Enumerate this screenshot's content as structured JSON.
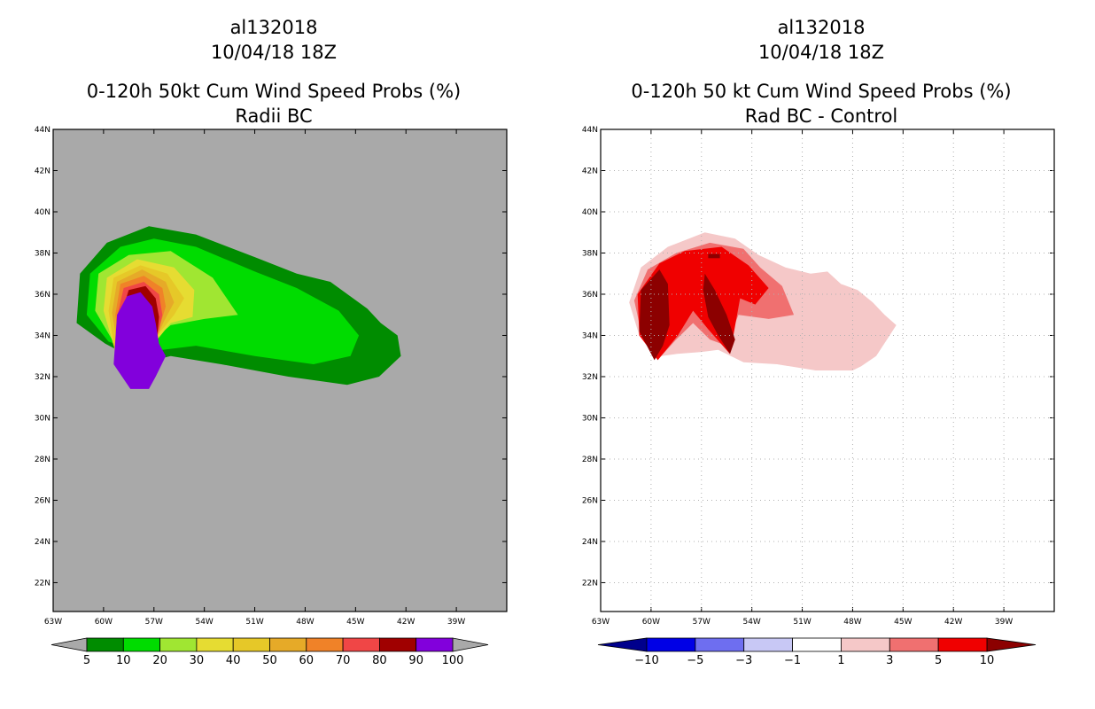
{
  "chart_data": [
    {
      "type": "contour-map",
      "case_id": "al132018",
      "datetime": "10/04/18 18Z",
      "title": "0-120h 50kt Cum Wind Speed Probs (%)",
      "subtitle": "Radii BC",
      "background_color": "#a9a9a9",
      "grid": false,
      "lon_range": [
        -63,
        -36
      ],
      "lat_range": [
        20.6,
        44
      ],
      "x_ticks": [
        "63W",
        "60W",
        "57W",
        "54W",
        "51W",
        "48W",
        "45W",
        "42W",
        "39W"
      ],
      "y_ticks": [
        "22N",
        "24N",
        "26N",
        "28N",
        "30N",
        "32N",
        "34N",
        "36N",
        "38N",
        "40N",
        "42N",
        "44N"
      ],
      "colorbar": {
        "labels": [
          "5",
          "10",
          "20",
          "30",
          "40",
          "50",
          "60",
          "70",
          "80",
          "90",
          "100"
        ],
        "colors": [
          "#008c00",
          "#00dc00",
          "#a0e632",
          "#e6dc32",
          "#e6c828",
          "#e6aa28",
          "#f08228",
          "#f04646",
          "#a00000",
          "#8200dc"
        ],
        "low_arrow": "#a9a9a9",
        "high_arrow": "#a9a9a9"
      },
      "contours": [
        {
          "level": 5,
          "color": "#008c00",
          "points": [
            [
              -59.9,
              33.6
            ],
            [
              -61.6,
              34.6
            ],
            [
              -61.4,
              37.0
            ],
            [
              -59.8,
              38.5
            ],
            [
              -57.3,
              39.3
            ],
            [
              -54.5,
              38.9
            ],
            [
              -51.0,
              37.8
            ],
            [
              -48.5,
              37.0
            ],
            [
              -46.5,
              36.6
            ],
            [
              -44.3,
              35.3
            ],
            [
              -43.5,
              34.6
            ],
            [
              -42.5,
              34.0
            ],
            [
              -42.3,
              33.0
            ],
            [
              -43.6,
              32.0
            ],
            [
              -45.5,
              31.6
            ],
            [
              -49.0,
              32.0
            ],
            [
              -53.0,
              32.6
            ],
            [
              -56.0,
              33.0
            ],
            [
              -58.0,
              32.6
            ],
            [
              -58.5,
              33.0
            ]
          ]
        },
        {
          "level": 10,
          "color": "#00dc00",
          "points": [
            [
              -59.7,
              33.7
            ],
            [
              -61.0,
              35.0
            ],
            [
              -60.8,
              37.0
            ],
            [
              -59.0,
              38.3
            ],
            [
              -57.0,
              38.7
            ],
            [
              -54.5,
              38.3
            ],
            [
              -51.0,
              37.1
            ],
            [
              -48.5,
              36.3
            ],
            [
              -46.0,
              35.2
            ],
            [
              -44.8,
              34.0
            ],
            [
              -45.3,
              33.0
            ],
            [
              -47.5,
              32.6
            ],
            [
              -51.0,
              33.0
            ],
            [
              -54.5,
              33.5
            ],
            [
              -56.5,
              33.3
            ],
            [
              -57.5,
              33.1
            ]
          ]
        },
        {
          "level": 20,
          "color": "#a0e632",
          "points": [
            [
              -59.5,
              33.8
            ],
            [
              -60.5,
              35.2
            ],
            [
              -60.3,
              37.0
            ],
            [
              -58.5,
              37.9
            ],
            [
              -56.0,
              38.1
            ],
            [
              -53.5,
              36.8
            ],
            [
              -52.0,
              35.0
            ],
            [
              -54.0,
              34.8
            ],
            [
              -56.0,
              34.5
            ],
            [
              -57.0,
              33.8
            ]
          ]
        },
        {
          "level": 30,
          "color": "#e6dc32",
          "points": [
            [
              -59.4,
              33.5
            ],
            [
              -60.0,
              35.2
            ],
            [
              -59.8,
              36.8
            ],
            [
              -58.0,
              37.7
            ],
            [
              -55.8,
              37.3
            ],
            [
              -54.6,
              36.2
            ],
            [
              -54.7,
              34.9
            ],
            [
              -56.0,
              34.6
            ],
            [
              -56.8,
              33.8
            ]
          ]
        },
        {
          "level": 40,
          "color": "#e6c828",
          "points": [
            [
              -59.3,
              33.0
            ],
            [
              -59.7,
              35.2
            ],
            [
              -59.4,
              36.8
            ],
            [
              -57.8,
              37.4
            ],
            [
              -56.2,
              37.0
            ],
            [
              -55.2,
              35.8
            ],
            [
              -55.8,
              35.0
            ],
            [
              -57.0,
              33.8
            ]
          ]
        },
        {
          "level": 50,
          "color": "#e6aa28",
          "points": [
            [
              -59.0,
              32.8
            ],
            [
              -59.5,
              35.1
            ],
            [
              -59.2,
              36.6
            ],
            [
              -57.7,
              37.2
            ],
            [
              -56.3,
              36.6
            ],
            [
              -55.8,
              35.6
            ],
            [
              -56.4,
              34.7
            ],
            [
              -57.0,
              33.6
            ]
          ]
        },
        {
          "level": 60,
          "color": "#f08228",
          "points": [
            [
              -58.9,
              32.7
            ],
            [
              -59.3,
              35.0
            ],
            [
              -59.0,
              36.5
            ],
            [
              -57.6,
              36.9
            ],
            [
              -56.5,
              36.3
            ],
            [
              -56.3,
              35.4
            ],
            [
              -56.6,
              34.6
            ],
            [
              -57.0,
              33.5
            ]
          ]
        },
        {
          "level": 70,
          "color": "#f04646",
          "points": [
            [
              -58.8,
              32.6
            ],
            [
              -59.2,
              34.9
            ],
            [
              -58.8,
              36.3
            ],
            [
              -57.6,
              36.6
            ],
            [
              -56.7,
              36.0
            ],
            [
              -56.5,
              35.0
            ],
            [
              -56.7,
              34.3
            ],
            [
              -57.0,
              33.4
            ]
          ]
        },
        {
          "level": 80,
          "color": "#a00000",
          "points": [
            [
              -58.7,
              32.5
            ],
            [
              -59.0,
              34.9
            ],
            [
              -58.5,
              36.2
            ],
            [
              -57.5,
              36.4
            ],
            [
              -56.9,
              35.8
            ],
            [
              -56.7,
              34.9
            ],
            [
              -56.8,
              34.0
            ],
            [
              -57.0,
              33.3
            ]
          ]
        },
        {
          "level": 100,
          "color": "#8200dc",
          "points": [
            [
              -58.4,
              31.4
            ],
            [
              -59.4,
              32.6
            ],
            [
              -59.2,
              35.0
            ],
            [
              -58.6,
              35.9
            ],
            [
              -57.8,
              36.1
            ],
            [
              -57.1,
              35.4
            ],
            [
              -56.9,
              34.6
            ],
            [
              -56.7,
              33.6
            ],
            [
              -56.3,
              33.0
            ],
            [
              -56.9,
              32.0
            ],
            [
              -57.3,
              31.4
            ]
          ]
        }
      ]
    },
    {
      "type": "contour-map",
      "case_id": "al132018",
      "datetime": "10/04/18 18Z",
      "title": "0-120h 50 kt Cum Wind Speed Probs (%)",
      "subtitle": "Rad BC - Control",
      "background_color": "#ffffff",
      "grid": true,
      "lon_range": [
        -63,
        -36
      ],
      "lat_range": [
        20.6,
        44
      ],
      "x_ticks": [
        "63W",
        "60W",
        "57W",
        "54W",
        "51W",
        "48W",
        "45W",
        "42W",
        "39W"
      ],
      "y_ticks": [
        "22N",
        "24N",
        "26N",
        "28N",
        "30N",
        "32N",
        "34N",
        "36N",
        "38N",
        "40N",
        "42N",
        "44N"
      ],
      "colorbar": {
        "labels": [
          "-10",
          "-5",
          "-3",
          "-1",
          "1",
          "3",
          "5",
          "10"
        ],
        "colors": [
          "#0000e6",
          "#6e6ef0",
          "#c8c8f5",
          "#ffffff",
          "#f5c8c8",
          "#f07070",
          "#f00000"
        ],
        "low_arrow": "#00008c",
        "high_arrow": "#8c0000"
      },
      "contours": [
        {
          "level": 1,
          "color": "#f5c8c8",
          "points": [
            [
              -59.4,
              33.0
            ],
            [
              -60.7,
              34.0
            ],
            [
              -61.3,
              35.6
            ],
            [
              -60.6,
              37.3
            ],
            [
              -59.0,
              38.3
            ],
            [
              -56.8,
              39.0
            ],
            [
              -55.0,
              38.7
            ],
            [
              -53.6,
              37.9
            ],
            [
              -52.0,
              37.3
            ],
            [
              -50.5,
              37.0
            ],
            [
              -49.5,
              37.1
            ],
            [
              -48.7,
              36.5
            ],
            [
              -47.7,
              36.2
            ],
            [
              -46.8,
              35.6
            ],
            [
              -46.1,
              35.0
            ],
            [
              -45.4,
              34.5
            ],
            [
              -45.8,
              34.0
            ],
            [
              -46.6,
              33.0
            ],
            [
              -47.5,
              32.5
            ],
            [
              -48.0,
              32.3
            ],
            [
              -50.2,
              32.3
            ],
            [
              -52.5,
              32.6
            ],
            [
              -54.5,
              32.7
            ],
            [
              -56.0,
              33.3
            ],
            [
              -57.0,
              33.2
            ],
            [
              -58.5,
              33.1
            ]
          ]
        },
        {
          "level": 3,
          "color": "#f07070",
          "points": [
            [
              -59.4,
              33.0
            ],
            [
              -60.6,
              34.2
            ],
            [
              -61.0,
              35.7
            ],
            [
              -60.2,
              37.2
            ],
            [
              -58.5,
              38.0
            ],
            [
              -56.5,
              38.5
            ],
            [
              -54.5,
              38.2
            ],
            [
              -53.5,
              37.3
            ],
            [
              -52.2,
              36.4
            ],
            [
              -51.5,
              35.0
            ],
            [
              -53.0,
              34.8
            ],
            [
              -54.8,
              35.0
            ],
            [
              -55.5,
              33.5
            ],
            [
              -56.5,
              33.8
            ],
            [
              -57.5,
              34.6
            ],
            [
              -58.5,
              33.8
            ]
          ]
        },
        {
          "level": 5,
          "color": "#f00000",
          "points": [
            [
              -59.6,
              32.8
            ],
            [
              -60.7,
              34.0
            ],
            [
              -60.8,
              36.0
            ],
            [
              -59.5,
              37.5
            ],
            [
              -58.0,
              38.1
            ],
            [
              -55.8,
              38.3
            ],
            [
              -54.2,
              37.4
            ],
            [
              -53.0,
              36.3
            ],
            [
              -53.8,
              35.5
            ],
            [
              -54.7,
              35.8
            ],
            [
              -55.3,
              33.1
            ],
            [
              -56.6,
              34.3
            ],
            [
              -57.5,
              35.2
            ],
            [
              -58.4,
              34.0
            ]
          ]
        },
        {
          "level": 10,
          "color": "#8c0000",
          "points": [
            [
              -59.8,
              32.8
            ],
            [
              -60.7,
              34.2
            ],
            [
              -60.6,
              36.2
            ],
            [
              -59.5,
              37.2
            ],
            [
              -59.0,
              36.5
            ],
            [
              -58.9,
              34.5
            ],
            [
              -59.3,
              33.5
            ]
          ]
        },
        {
          "level": 10,
          "color": "#8c0000",
          "points": [
            [
              -55.3,
              33.1
            ],
            [
              -56.0,
              34.0
            ],
            [
              -56.6,
              34.9
            ],
            [
              -56.9,
              36.2
            ],
            [
              -56.8,
              37.0
            ],
            [
              -56.2,
              36.2
            ],
            [
              -55.5,
              35.0
            ],
            [
              -55.0,
              33.8
            ]
          ]
        },
        {
          "level": 10,
          "color": "#8c0000",
          "points": [
            [
              -56.6,
              37.95
            ],
            [
              -55.9,
              37.95
            ],
            [
              -55.9,
              37.75
            ],
            [
              -56.6,
              37.75
            ]
          ]
        }
      ]
    }
  ]
}
